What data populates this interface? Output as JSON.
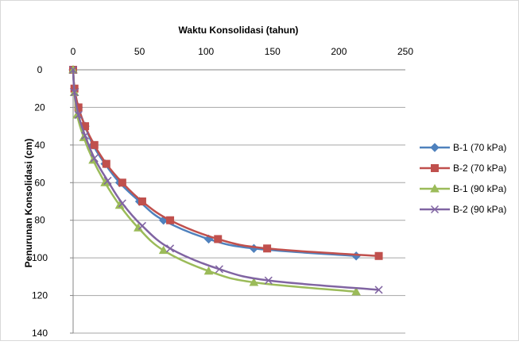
{
  "chart_data": {
    "type": "line",
    "title": "",
    "xlabel": "Waktu Konsolidasi  (tahun)",
    "ylabel": "Penurunan Konsolidasi  (cm)",
    "x_axis_position": "top",
    "y_axis_inverted": true,
    "xlim": [
      0,
      250
    ],
    "ylim": [
      0,
      140
    ],
    "x_ticks": [
      "0",
      "50",
      "100",
      "150",
      "200",
      "250"
    ],
    "y_ticks": [
      "0",
      "20",
      "40",
      "60",
      "80",
      "100",
      "120",
      "140"
    ],
    "grid": "horizontal",
    "legend_position": "right",
    "series": [
      {
        "name": "B-1 (70 kPa)",
        "color": "#4F81BD",
        "marker": "diamond",
        "points": [
          [
            0,
            0
          ],
          [
            1,
            10
          ],
          [
            4,
            20
          ],
          [
            9,
            30
          ],
          [
            15,
            40
          ],
          [
            24,
            50
          ],
          [
            35,
            60
          ],
          [
            50,
            70
          ],
          [
            68,
            80
          ],
          [
            102,
            90
          ],
          [
            136,
            95
          ],
          [
            213,
            99
          ]
        ]
      },
      {
        "name": "B-2 (70 kPa)",
        "color": "#C0504D",
        "marker": "square",
        "points": [
          [
            0,
            0
          ],
          [
            1,
            10
          ],
          [
            4,
            20
          ],
          [
            9,
            30
          ],
          [
            16,
            40
          ],
          [
            25,
            50
          ],
          [
            37,
            60
          ],
          [
            52,
            70
          ],
          [
            73,
            80
          ],
          [
            109,
            90
          ],
          [
            146,
            95
          ],
          [
            230,
            99
          ]
        ]
      },
      {
        "name": "B-1 (90 kPa)",
        "color": "#9BBB59",
        "marker": "triangle",
        "points": [
          [
            0,
            0
          ],
          [
            1,
            12
          ],
          [
            3,
            24
          ],
          [
            8,
            36
          ],
          [
            15,
            48
          ],
          [
            24,
            60
          ],
          [
            35,
            72
          ],
          [
            49,
            84
          ],
          [
            68,
            96
          ],
          [
            102,
            107
          ],
          [
            136,
            113
          ],
          [
            213,
            118
          ]
        ]
      },
      {
        "name": "B-2 (90 kPa)",
        "color": "#8064A2",
        "marker": "x",
        "points": [
          [
            0,
            0
          ],
          [
            1,
            12
          ],
          [
            4,
            24
          ],
          [
            9,
            35
          ],
          [
            16,
            47
          ],
          [
            26,
            59
          ],
          [
            37,
            71
          ],
          [
            52,
            83
          ],
          [
            73,
            95
          ],
          [
            110,
            106
          ],
          [
            147,
            112
          ],
          [
            230,
            117
          ]
        ]
      }
    ]
  }
}
